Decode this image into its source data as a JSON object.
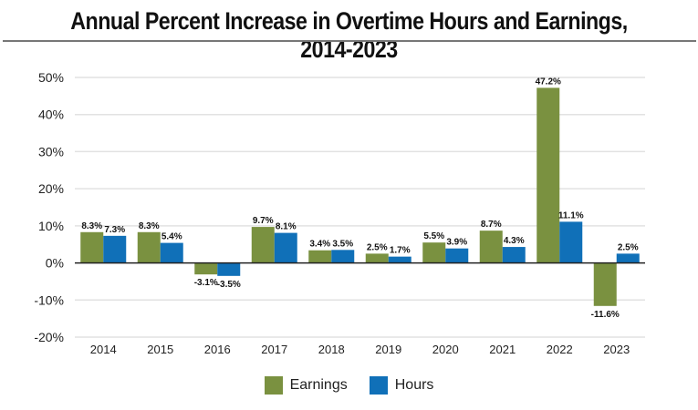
{
  "chart_data": {
    "type": "bar",
    "title": "Annual Percent Increase in Overtime Hours and Earnings, 2014-2023",
    "xlabel": "",
    "ylabel": "",
    "categories": [
      "2014",
      "2015",
      "2016",
      "2017",
      "2018",
      "2019",
      "2020",
      "2021",
      "2022",
      "2023"
    ],
    "series": [
      {
        "name": "Earnings",
        "color": "#7a9140",
        "values": [
          8.3,
          8.3,
          -3.1,
          9.7,
          3.4,
          2.5,
          5.5,
          8.7,
          47.2,
          -11.6
        ],
        "labels": [
          "8.3%",
          "8.3%",
          "-3.1%",
          "9.7%",
          "3.4%",
          "2.5%",
          "5.5%",
          "8.7%",
          "47.2%",
          "-11.6%"
        ]
      },
      {
        "name": "Hours",
        "color": "#1070b8",
        "values": [
          7.3,
          5.4,
          -3.5,
          8.1,
          3.5,
          1.7,
          3.9,
          4.3,
          11.1,
          2.5
        ],
        "labels": [
          "7.3%",
          "5.4%",
          "-3.5%",
          "8.1%",
          "3.5%",
          "1.7%",
          "3.9%",
          "4.3%",
          "11.1%",
          "2.5%"
        ]
      }
    ],
    "ylim": [
      -20,
      50
    ],
    "yticks": [
      50,
      40,
      30,
      20,
      10,
      0,
      -10,
      -20
    ],
    "ytick_labels": [
      "50%",
      "40%",
      "30%",
      "20%",
      "10%",
      "0%",
      "-10%",
      "-20%"
    ],
    "grid": true,
    "legend_position": "bottom"
  }
}
